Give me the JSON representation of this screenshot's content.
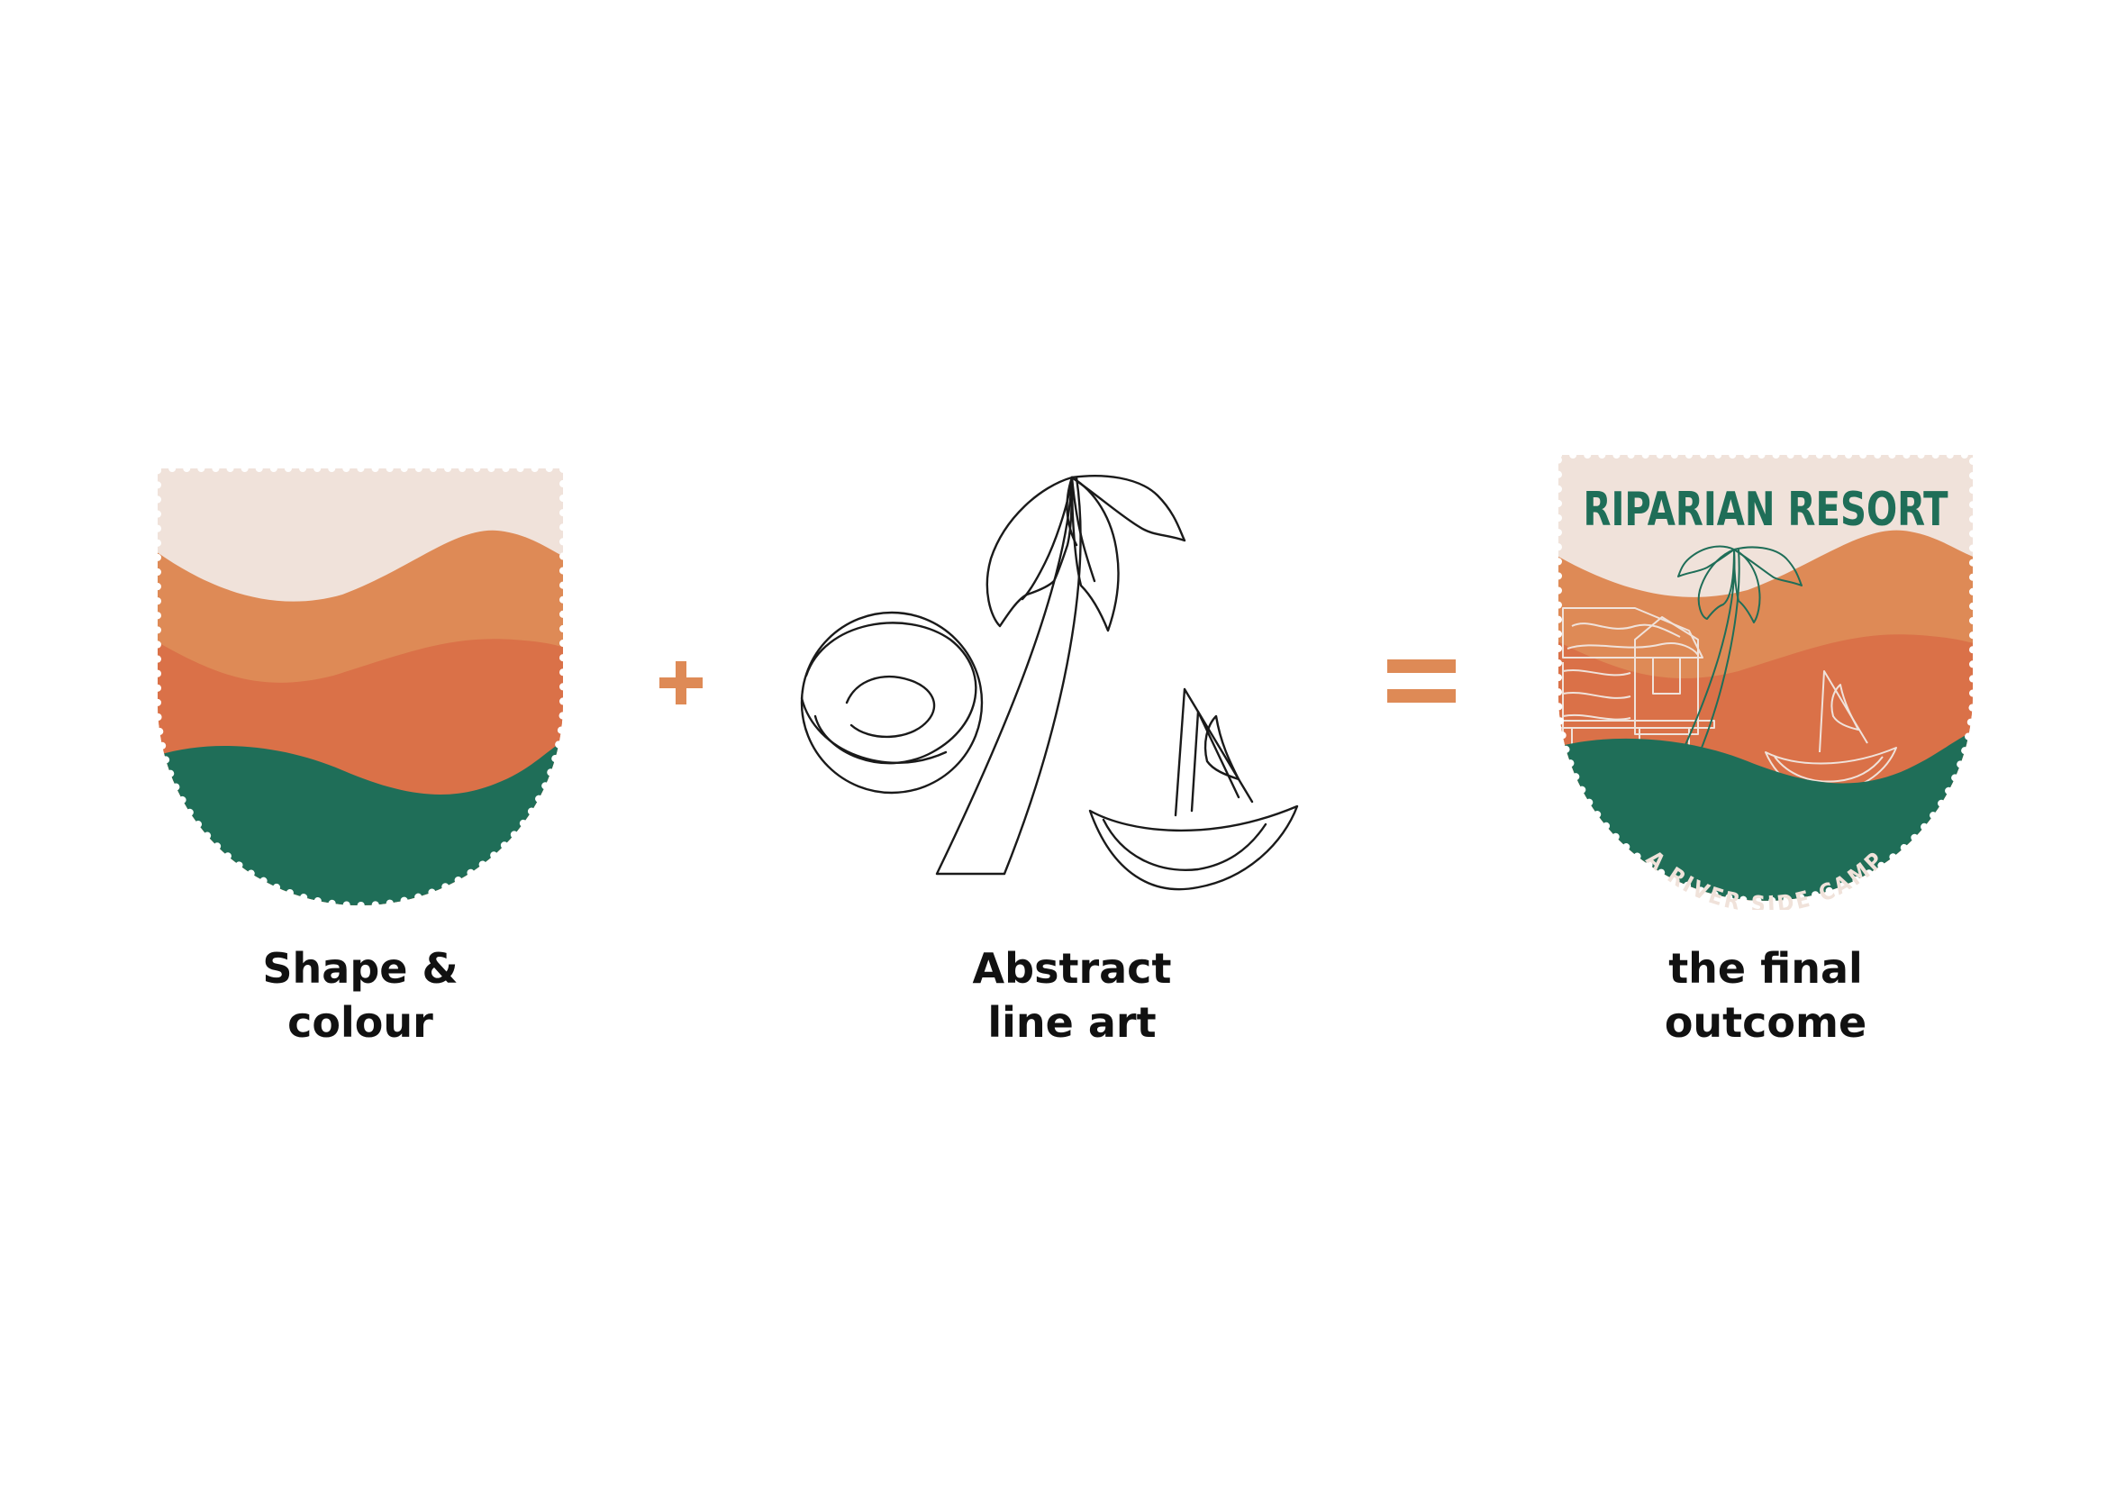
{
  "colors": {
    "cream": "#F0E2DA",
    "light_orange": "#DE8A56",
    "dark_orange": "#DA7148",
    "green": "#1F6E58",
    "line": "#1a1a1a",
    "operator": "#DE8A56"
  },
  "steps": [
    {
      "id": "shape",
      "caption_line1": "Shape &",
      "caption_line2": "colour"
    },
    {
      "id": "line-art",
      "caption_line1": "Abstract",
      "caption_line2": "line art"
    },
    {
      "id": "outcome",
      "caption_line1": "the final",
      "caption_line2": "outcome"
    }
  ],
  "operators": {
    "plus": "plus-icon",
    "equals": "equals-icon"
  },
  "badge": {
    "title": "RIPARIAN RESORT",
    "tagline": "A RIVER SIDE CAMP"
  }
}
